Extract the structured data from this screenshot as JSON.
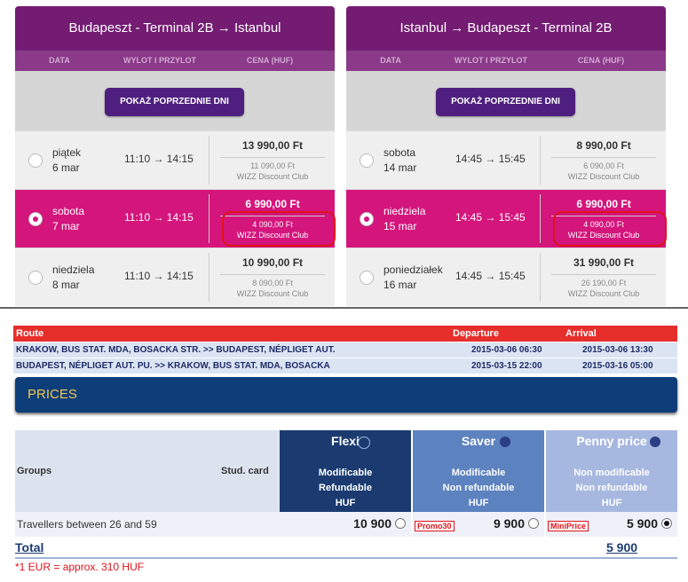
{
  "flights": [
    {
      "title": "Budapeszt - Terminal 2B → Istanbul",
      "columns": [
        "DATA",
        "WYLOT I PRZYLOT",
        "CENA (HUF)"
      ],
      "button": "POKAŻ POPRZEDNIE DNI",
      "rows": [
        {
          "day": "piątek",
          "date": "6 mar",
          "time": "11:10 → 14:15",
          "price": "13 990,00 Ft",
          "club_price": "11 090,00 Ft",
          "club_label": "WIZZ Discount Club",
          "selected": false
        },
        {
          "day": "sobota",
          "date": "7 mar",
          "time": "11:10 → 14:15",
          "price": "6 990,00 Ft",
          "club_price": "4 090,00 Ft",
          "club_label": "WIZZ Discount Club",
          "selected": true
        },
        {
          "day": "niedziela",
          "date": "8 mar",
          "time": "11:10 → 14:15",
          "price": "10 990,00 Ft",
          "club_price": "8 090,00 Ft",
          "club_label": "WIZZ Discount Club",
          "selected": false
        }
      ]
    },
    {
      "title": "Istanbul → Budapeszt - Terminal 2B",
      "columns": [
        "DATA",
        "WYLOT I PRZYLOT",
        "CENA (HUF)"
      ],
      "button": "POKAŻ POPRZEDNIE DNI",
      "rows": [
        {
          "day": "sobota",
          "date": "14 mar",
          "time": "14:45 → 15:45",
          "price": "8 990,00 Ft",
          "club_price": "6 090,00 Ft",
          "club_label": "WIZZ Discount Club",
          "selected": false
        },
        {
          "day": "niedziela",
          "date": "15 mar",
          "time": "14:45 → 15:45",
          "price": "6 990,00 Ft",
          "club_price": "4 090,00 Ft",
          "club_label": "WIZZ Discount Club",
          "selected": true
        },
        {
          "day": "poniedziałek",
          "date": "16 mar",
          "time": "14:45 → 15:45",
          "price": "31 990,00 Ft",
          "club_price": "26 190,00 Ft",
          "club_label": "WIZZ Discount Club",
          "selected": false
        }
      ]
    }
  ],
  "routes": {
    "columns": [
      "Route",
      "Departure",
      "Arrival"
    ],
    "rows": [
      [
        "KRAKOW, BUS STAT. MDA, BOSACKA STR. >> BUDAPEST, NÉPLIGET AUT.",
        "2015-03-06 06:30",
        "2015-03-06 13:30"
      ],
      [
        "BUDAPEST, NÉPLIGET AUT. PU. >> KRAKOW, BUS STAT. MDA, BOSACKA",
        "2015-03-15 22:00",
        "2015-03-16 05:00"
      ]
    ]
  },
  "prices": {
    "title": "PRICES",
    "groups_label": "Groups",
    "card_label": "Stud. card",
    "fares": [
      {
        "name": "Flexi",
        "features": [
          "Modificable",
          "Refundable",
          "HUF"
        ],
        "price": "10 900",
        "selected": false
      },
      {
        "name": "Saver",
        "features": [
          "Modificable",
          "Non refundable",
          "HUF"
        ],
        "promo": "Promo30",
        "price": "9 900",
        "selected": false
      },
      {
        "name": "Penny price",
        "features": [
          "Non modificable",
          "Non refundable",
          "HUF"
        ],
        "promo": "MiniPrice",
        "price": "5 900",
        "selected": true
      }
    ],
    "traveller_label": "Travellers between 26 and 59",
    "total_label": "Total",
    "total": "5 900"
  },
  "footnote": "*1 EUR = approx. 310 HUF"
}
